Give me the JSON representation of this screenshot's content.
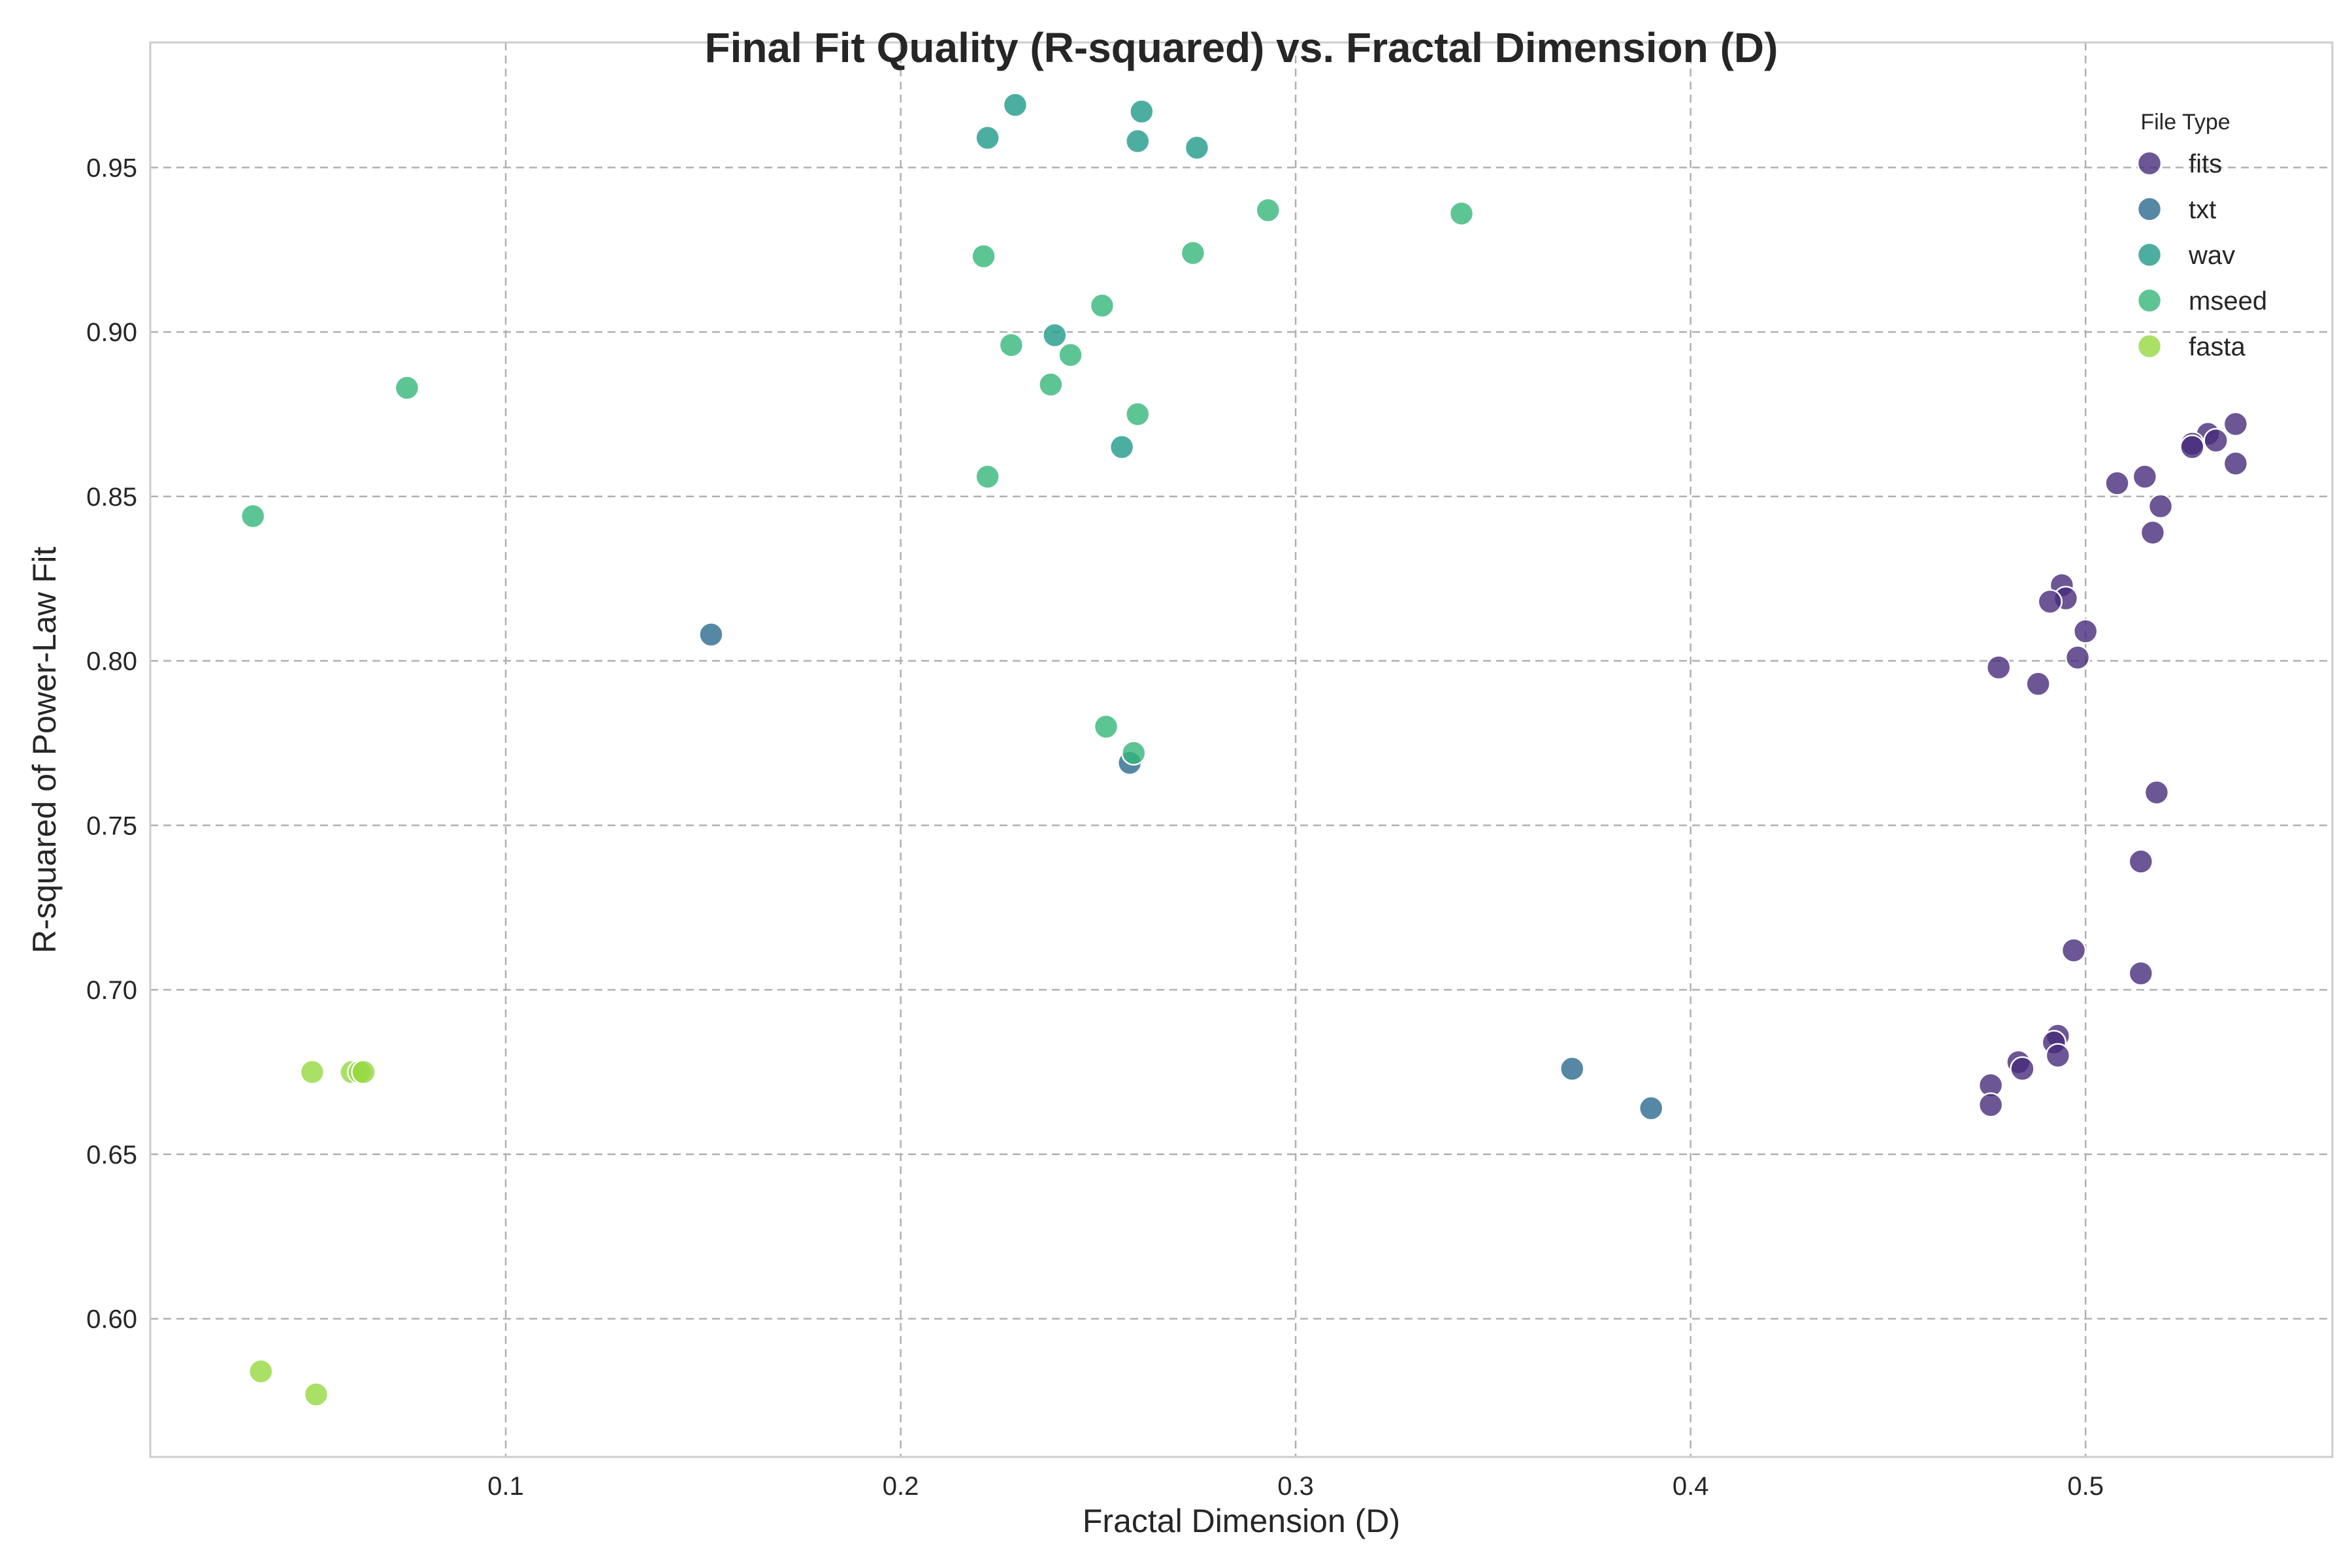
{
  "chart_data": {
    "type": "scatter",
    "title": "Final Fit Quality (R-squared) vs. Fractal Dimension (D)",
    "xlabel": "Fractal Dimension (D)",
    "ylabel": "R-squared of Power-Law Fit",
    "xlim": [
      0.01,
      0.5625
    ],
    "ylim": [
      0.558,
      0.988
    ],
    "xticks": [
      0.1,
      0.2,
      0.3,
      0.4,
      0.5
    ],
    "xtick_labels": [
      "0.1",
      "0.2",
      "0.3",
      "0.4",
      "0.5"
    ],
    "yticks": [
      0.6,
      0.65,
      0.7,
      0.75,
      0.8,
      0.85,
      0.9,
      0.95
    ],
    "ytick_labels": [
      "0.60",
      "0.65",
      "0.70",
      "0.75",
      "0.80",
      "0.85",
      "0.90",
      "0.95"
    ],
    "grid": true,
    "legend": {
      "title": "File Type",
      "placement": "top-right"
    },
    "series": [
      {
        "name": "fits",
        "color": "#472c7a",
        "points": [
          [
            0.538,
            0.872
          ],
          [
            0.531,
            0.869
          ],
          [
            0.533,
            0.867
          ],
          [
            0.527,
            0.866
          ],
          [
            0.527,
            0.865
          ],
          [
            0.538,
            0.86
          ],
          [
            0.515,
            0.856
          ],
          [
            0.508,
            0.854
          ],
          [
            0.519,
            0.847
          ],
          [
            0.517,
            0.839
          ],
          [
            0.494,
            0.823
          ],
          [
            0.495,
            0.819
          ],
          [
            0.491,
            0.818
          ],
          [
            0.5,
            0.809
          ],
          [
            0.498,
            0.801
          ],
          [
            0.478,
            0.798
          ],
          [
            0.488,
            0.793
          ],
          [
            0.518,
            0.76
          ],
          [
            0.514,
            0.739
          ],
          [
            0.497,
            0.712
          ],
          [
            0.514,
            0.705
          ],
          [
            0.493,
            0.686
          ],
          [
            0.492,
            0.684
          ],
          [
            0.493,
            0.68
          ],
          [
            0.483,
            0.678
          ],
          [
            0.484,
            0.676
          ],
          [
            0.476,
            0.671
          ],
          [
            0.476,
            0.665
          ]
        ]
      },
      {
        "name": "txt",
        "color": "#2c6a8e",
        "points": [
          [
            0.152,
            0.808
          ],
          [
            0.258,
            0.769
          ],
          [
            0.37,
            0.676
          ],
          [
            0.39,
            0.664
          ]
        ]
      },
      {
        "name": "wav",
        "color": "#1f9a8a",
        "points": [
          [
            0.229,
            0.969
          ],
          [
            0.261,
            0.967
          ],
          [
            0.222,
            0.959
          ],
          [
            0.26,
            0.958
          ],
          [
            0.275,
            0.956
          ],
          [
            0.239,
            0.899
          ],
          [
            0.256,
            0.865
          ]
        ]
      },
      {
        "name": "mseed",
        "color": "#35b779",
        "points": [
          [
            0.293,
            0.937
          ],
          [
            0.342,
            0.936
          ],
          [
            0.274,
            0.924
          ],
          [
            0.221,
            0.923
          ],
          [
            0.251,
            0.908
          ],
          [
            0.228,
            0.896
          ],
          [
            0.243,
            0.893
          ],
          [
            0.238,
            0.884
          ],
          [
            0.075,
            0.883
          ],
          [
            0.26,
            0.875
          ],
          [
            0.222,
            0.856
          ],
          [
            0.036,
            0.844
          ],
          [
            0.252,
            0.78
          ],
          [
            0.259,
            0.772
          ]
        ]
      },
      {
        "name": "fasta",
        "color": "#95d840",
        "points": [
          [
            0.051,
            0.675
          ],
          [
            0.061,
            0.675
          ],
          [
            0.063,
            0.675
          ],
          [
            0.064,
            0.675
          ],
          [
            0.038,
            0.584
          ],
          [
            0.052,
            0.577
          ]
        ]
      }
    ]
  }
}
